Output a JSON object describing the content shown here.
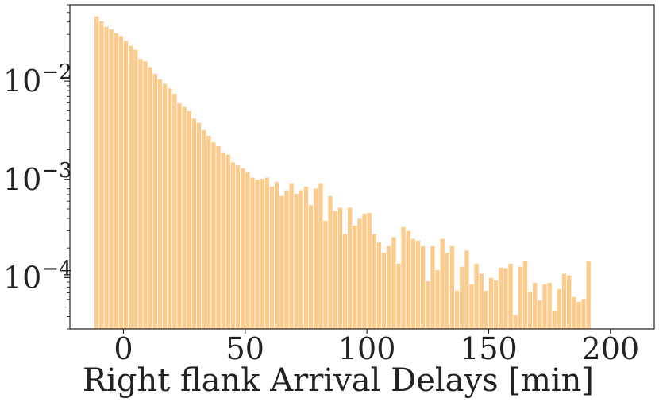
{
  "chart_data": {
    "type": "bar",
    "title": "",
    "xlabel": "Right flank Arrival Delays [min]",
    "ylabel": "",
    "xlim": [
      -22,
      218
    ],
    "ylim": [
      3e-05,
      0.06
    ],
    "yscale": "log",
    "grid": false,
    "bar_color": "#fdcb8b",
    "bar_edge_color": "#ffffff",
    "x_ticks": [
      0,
      50,
      100,
      150,
      200
    ],
    "x_tick_labels": [
      "0",
      "50",
      "100",
      "150",
      "200"
    ],
    "y_ticks": [
      0.0001,
      0.001,
      0.01
    ],
    "y_tick_base": "10",
    "y_tick_exponents": [
      "−4",
      "−3",
      "−2"
    ],
    "bin_edges_start": -12,
    "bin_width": 2,
    "values": [
      0.046,
      0.041,
      0.036,
      0.034,
      0.031,
      0.029,
      0.026,
      0.023,
      0.021,
      0.017,
      0.016,
      0.014,
      0.012,
      0.0105,
      0.0095,
      0.0085,
      0.0075,
      0.006,
      0.0055,
      0.005,
      0.0042,
      0.0038,
      0.0032,
      0.0028,
      0.0024,
      0.0022,
      0.0019,
      0.0018,
      0.0015,
      0.0014,
      0.0013,
      0.0012,
      0.00105,
      0.001,
      0.00102,
      0.00105,
      0.00085,
      0.00095,
      0.00068,
      0.00078,
      0.00092,
      0.00072,
      0.00078,
      0.00085,
      0.00055,
      0.00081,
      0.00092,
      0.00038,
      0.00068,
      0.00048,
      0.00052,
      0.00028,
      0.00052,
      0.00034,
      0.0004,
      0.00045,
      0.00046,
      0.00028,
      0.00023,
      0.00018,
      0.00021,
      0.00026,
      0.00014,
      0.00033,
      0.0003,
      0.00025,
      0.00024,
      0.00021,
      9.25e-05,
      0.00021,
      0.00012,
      0.00025,
      0.00018,
      0.00021,
      7.4e-05,
      0.00013,
      0.00019,
      8.6e-05,
      0.00014,
      0.00011,
      7.4e-05,
      0.0001,
      9.4e-05,
      0.000127,
      0.000126,
      0.00014,
      4.2e-05,
      0.00013,
      0.00015,
      7.2e-05,
      8.9e-05,
      5.9e-05,
      8.6e-05,
      8.9e-05,
      4.6e-05,
      7.7e-05,
      0.00011,
      0.000106,
      6.4e-05,
      5.7e-05,
      6.1e-05,
      0.000149
    ]
  }
}
